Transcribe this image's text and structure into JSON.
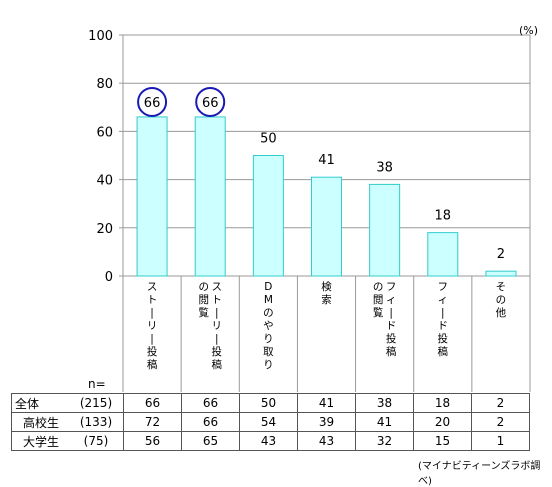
{
  "chart_data": {
    "type": "bar",
    "unit": "(%)",
    "ylim": [
      0,
      100
    ],
    "yticks": [
      0,
      20,
      40,
      60,
      80,
      100
    ],
    "categories": [
      [
        "ストーリー投稿"
      ],
      [
        "ストーリー投稿",
        "の閲覧"
      ],
      [
        "DMのやり取り"
      ],
      [
        "検索"
      ],
      [
        "フィード投稿",
        "の閲覧"
      ],
      [
        "フィード投稿"
      ],
      [
        "その他"
      ]
    ],
    "values": [
      66,
      66,
      50,
      41,
      38,
      18,
      2
    ],
    "highlighted": [
      0,
      1
    ],
    "bar_color": "#ccffff",
    "bar_border": "#33cccc",
    "highlight_color": "#1a1ab3",
    "source": "(マイナビティーンズラボ調べ)"
  },
  "table": {
    "n_label": "n=",
    "rows": [
      {
        "label": "全体",
        "n": "(215)",
        "values": [
          "66",
          "66",
          "50",
          "41",
          "38",
          "18",
          "2"
        ]
      },
      {
        "label": "高校生",
        "n": "(133)",
        "values": [
          "72",
          "66",
          "54",
          "39",
          "41",
          "20",
          "2"
        ]
      },
      {
        "label": "大学生",
        "n": "(75)",
        "values": [
          "56",
          "65",
          "43",
          "43",
          "32",
          "15",
          "1"
        ]
      }
    ]
  }
}
